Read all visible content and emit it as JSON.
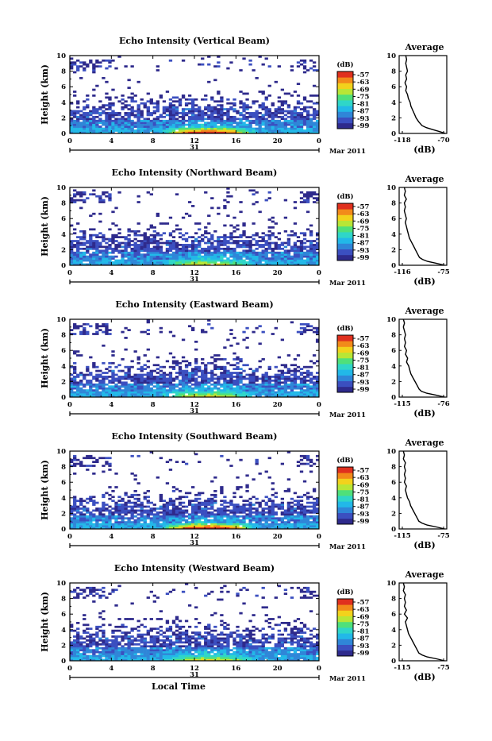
{
  "chart_data": [
    {
      "type": "heatmap",
      "title": "Echo Intensity (Vertical Beam)",
      "ylabel": "Height (km)",
      "ylim": [
        0,
        10
      ],
      "yticks": [
        "0",
        "2",
        "4",
        "6",
        "8",
        "10"
      ],
      "xlim": [
        0,
        24
      ],
      "xticks": [
        "0",
        "4",
        "8",
        "12",
        "16",
        "20",
        "0"
      ],
      "date_label": "31",
      "month_label": "Mar 2011",
      "colorbar": {
        "unit": "(dB)",
        "ticks": [
          "-57",
          "-63",
          "-69",
          "-75",
          "-81",
          "-87",
          "-93",
          "-99"
        ]
      },
      "average": {
        "title": "Average",
        "xlabel": "(dB)",
        "xticks": [
          "-118",
          "-70"
        ],
        "yticks": [
          "0",
          "2",
          "4",
          "6",
          "8",
          "10"
        ],
        "xlim": [
          -118,
          -70
        ],
        "profile": [
          [
            -68,
            0
          ],
          [
            -75,
            0.25
          ],
          [
            -83,
            0.5
          ],
          [
            -90,
            0.75
          ],
          [
            -95,
            1
          ],
          [
            -97,
            1.25
          ],
          [
            -99,
            1.5
          ],
          [
            -102,
            2
          ],
          [
            -104,
            2.5
          ],
          [
            -106,
            3
          ],
          [
            -108,
            3.5
          ],
          [
            -109,
            4
          ],
          [
            -111,
            4.5
          ],
          [
            -112,
            5
          ],
          [
            -114,
            5.5
          ],
          [
            -113,
            6
          ],
          [
            -115,
            6.5
          ],
          [
            -113,
            7
          ],
          [
            -114,
            7.5
          ],
          [
            -112,
            8
          ],
          [
            -113,
            8.5
          ],
          [
            -114,
            9
          ],
          [
            -113,
            9.5
          ],
          [
            -114,
            10
          ]
        ]
      }
    },
    {
      "type": "heatmap",
      "title": "Echo Intensity (Northward Beam)",
      "ylabel": "Height (km)",
      "ylim": [
        0,
        10
      ],
      "yticks": [
        "0",
        "2",
        "4",
        "6",
        "8",
        "10"
      ],
      "xlim": [
        0,
        24
      ],
      "xticks": [
        "0",
        "4",
        "8",
        "12",
        "16",
        "20",
        "0"
      ],
      "date_label": "31",
      "month_label": "Mar 2011",
      "colorbar": {
        "unit": "(dB)",
        "ticks": [
          "-57",
          "-63",
          "-69",
          "-75",
          "-81",
          "-87",
          "-93",
          "-99"
        ]
      },
      "average": {
        "title": "Average",
        "xlabel": "(dB)",
        "xticks": [
          "-116",
          "-75"
        ],
        "yticks": [
          "0",
          "2",
          "4",
          "6",
          "8",
          "10"
        ],
        "xlim": [
          -116,
          -75
        ],
        "profile": [
          [
            -74,
            0
          ],
          [
            -82,
            0.25
          ],
          [
            -91,
            0.5
          ],
          [
            -96,
            0.75
          ],
          [
            -99,
            1
          ],
          [
            -101,
            1.5
          ],
          [
            -103,
            2
          ],
          [
            -105,
            2.5
          ],
          [
            -107,
            3
          ],
          [
            -109,
            3.5
          ],
          [
            -110,
            4
          ],
          [
            -111,
            4.5
          ],
          [
            -112,
            5
          ],
          [
            -113,
            5.5
          ],
          [
            -112,
            6
          ],
          [
            -113,
            6.5
          ],
          [
            -114,
            7
          ],
          [
            -113,
            7.5
          ],
          [
            -114,
            8
          ],
          [
            -112,
            8.5
          ],
          [
            -114,
            9
          ],
          [
            -113,
            9.5
          ],
          [
            -114,
            10
          ]
        ]
      }
    },
    {
      "type": "heatmap",
      "title": "Echo Intensity (Eastward Beam)",
      "ylabel": "Height (km)",
      "ylim": [
        0,
        10
      ],
      "yticks": [
        "0",
        "2",
        "4",
        "6",
        "8",
        "10"
      ],
      "xlim": [
        0,
        24
      ],
      "xticks": [
        "0",
        "4",
        "8",
        "12",
        "16",
        "20",
        "0"
      ],
      "date_label": "31",
      "month_label": "Mar 2011",
      "colorbar": {
        "unit": "(dB)",
        "ticks": [
          "-57",
          "-63",
          "-69",
          "-75",
          "-81",
          "-87",
          "-93",
          "-99"
        ]
      },
      "average": {
        "title": "Average",
        "xlabel": "(dB)",
        "xticks": [
          "-115",
          "-76"
        ],
        "yticks": [
          "0",
          "2",
          "4",
          "6",
          "8",
          "10"
        ],
        "xlim": [
          -115,
          -76
        ],
        "profile": [
          [
            -75,
            0
          ],
          [
            -83,
            0.25
          ],
          [
            -92,
            0.5
          ],
          [
            -97,
            0.75
          ],
          [
            -99,
            1
          ],
          [
            -101,
            1.5
          ],
          [
            -103,
            2
          ],
          [
            -105,
            2.5
          ],
          [
            -107,
            3
          ],
          [
            -108,
            3.5
          ],
          [
            -109,
            4
          ],
          [
            -111,
            4.5
          ],
          [
            -110,
            5
          ],
          [
            -112,
            5.5
          ],
          [
            -111,
            6
          ],
          [
            -113,
            6.5
          ],
          [
            -112,
            7
          ],
          [
            -113,
            7.5
          ],
          [
            -112,
            8
          ],
          [
            -113,
            8.5
          ],
          [
            -114,
            9
          ],
          [
            -113,
            9.5
          ],
          [
            -114,
            10
          ]
        ]
      }
    },
    {
      "type": "heatmap",
      "title": "Echo Intensity (Southward Beam)",
      "ylabel": "Height (km)",
      "ylim": [
        0,
        10
      ],
      "yticks": [
        "0",
        "2",
        "4",
        "6",
        "8",
        "10"
      ],
      "xlim": [
        0,
        24
      ],
      "xticks": [
        "0",
        "4",
        "8",
        "12",
        "16",
        "20",
        "0"
      ],
      "date_label": "31",
      "month_label": "Mar 2011",
      "colorbar": {
        "unit": "(dB)",
        "ticks": [
          "-57",
          "-63",
          "-69",
          "-75",
          "-81",
          "-87",
          "-93",
          "-99"
        ]
      },
      "average": {
        "title": "Average",
        "xlabel": "(dB)",
        "xticks": [
          "-115",
          "-75"
        ],
        "yticks": [
          "0",
          "2",
          "4",
          "6",
          "8",
          "10"
        ],
        "xlim": [
          -115,
          -75
        ],
        "profile": [
          [
            -74,
            0
          ],
          [
            -82,
            0.25
          ],
          [
            -91,
            0.5
          ],
          [
            -96,
            0.75
          ],
          [
            -99,
            1
          ],
          [
            -101,
            1.5
          ],
          [
            -103,
            2
          ],
          [
            -105,
            2.5
          ],
          [
            -107,
            3
          ],
          [
            -108,
            3.5
          ],
          [
            -110,
            4
          ],
          [
            -111,
            4.5
          ],
          [
            -112,
            5
          ],
          [
            -111,
            5.5
          ],
          [
            -113,
            6
          ],
          [
            -112,
            6.5
          ],
          [
            -113,
            7
          ],
          [
            -112,
            7.5
          ],
          [
            -113,
            8
          ],
          [
            -112,
            8.5
          ],
          [
            -114,
            9
          ],
          [
            -113,
            9.5
          ],
          [
            -114,
            10
          ]
        ]
      }
    },
    {
      "type": "heatmap",
      "title": "Echo Intensity (Westward Beam)",
      "ylabel": "Height (km)",
      "xlabel": "Local Time",
      "ylim": [
        0,
        10
      ],
      "yticks": [
        "0",
        "2",
        "4",
        "6",
        "8",
        "10"
      ],
      "xlim": [
        0,
        24
      ],
      "xticks": [
        "0",
        "4",
        "8",
        "12",
        "16",
        "20",
        "0"
      ],
      "date_label": "31",
      "month_label": "Mar 2011",
      "colorbar": {
        "unit": "(dB)",
        "ticks": [
          "-57",
          "-63",
          "-69",
          "-75",
          "-81",
          "-87",
          "-93",
          "-99"
        ]
      },
      "average": {
        "title": "Average",
        "xlabel": "(dB)",
        "xticks": [
          "-115",
          "-75"
        ],
        "yticks": [
          "0",
          "2",
          "4",
          "6",
          "8",
          "10"
        ],
        "xlim": [
          -115,
          -75
        ],
        "profile": [
          [
            -74,
            0
          ],
          [
            -82,
            0.25
          ],
          [
            -91,
            0.5
          ],
          [
            -96,
            0.75
          ],
          [
            -99,
            1
          ],
          [
            -101,
            1.5
          ],
          [
            -103,
            2
          ],
          [
            -105,
            2.5
          ],
          [
            -107,
            3
          ],
          [
            -109,
            3.5
          ],
          [
            -110,
            4
          ],
          [
            -111,
            4.5
          ],
          [
            -112,
            5
          ],
          [
            -110,
            5.5
          ],
          [
            -113,
            6
          ],
          [
            -111,
            6.5
          ],
          [
            -113,
            7
          ],
          [
            -112,
            7.5
          ],
          [
            -113,
            8
          ],
          [
            -112,
            8.5
          ],
          [
            -114,
            9
          ],
          [
            -113,
            9.5
          ],
          [
            -114,
            10
          ]
        ]
      }
    }
  ],
  "colormap": [
    "#2e2a8c",
    "#3b4fc0",
    "#2f86d8",
    "#22b8e8",
    "#2fd6c8",
    "#4fe07a",
    "#b8e636",
    "#f2d21c",
    "#f28a1a",
    "#e0301e"
  ]
}
